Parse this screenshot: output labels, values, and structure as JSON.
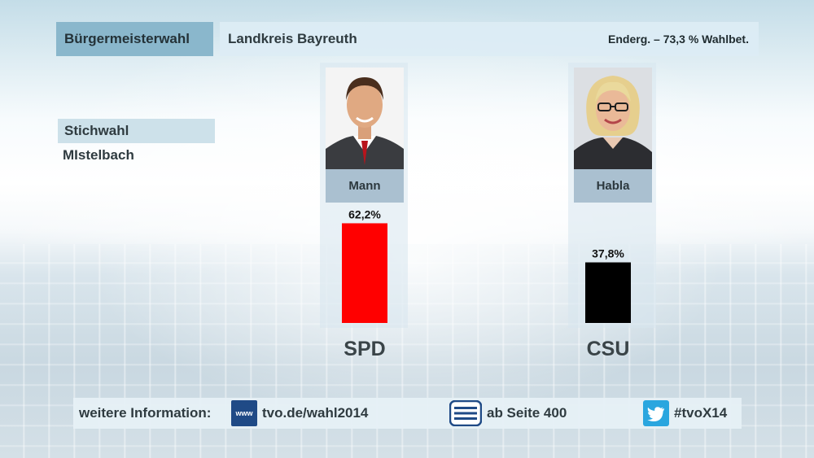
{
  "header": {
    "title": "Bürgermeisterwahl",
    "region": "Landkreis Bayreuth",
    "status": "Enderg. – 73,3 % Wahlbet."
  },
  "context": {
    "round": "Stichwahl",
    "place": "MIstelbach"
  },
  "candidates": [
    {
      "name": "Mann",
      "party": "SPD",
      "color": "#ff0000"
    },
    {
      "name": "Habla",
      "party": "CSU",
      "color": "#000000"
    }
  ],
  "chart_data": {
    "type": "bar",
    "categories": [
      "SPD",
      "CSU"
    ],
    "values": [
      62.2,
      37.8
    ],
    "value_labels": [
      "62,2%",
      "37,8%"
    ],
    "unit": "%",
    "ylim": [
      0,
      100
    ],
    "colors": [
      "#ff0000",
      "#000000"
    ],
    "grid": false,
    "legend": "none"
  },
  "footer": {
    "label": "weitere Information:",
    "www_icon_text": "www",
    "web": "tvo.de/wahl2014",
    "teletext": "ab Seite 400",
    "hashtag": "#tvoX14",
    "icons": [
      "www-icon",
      "teletext-icon",
      "twitter-icon"
    ]
  }
}
